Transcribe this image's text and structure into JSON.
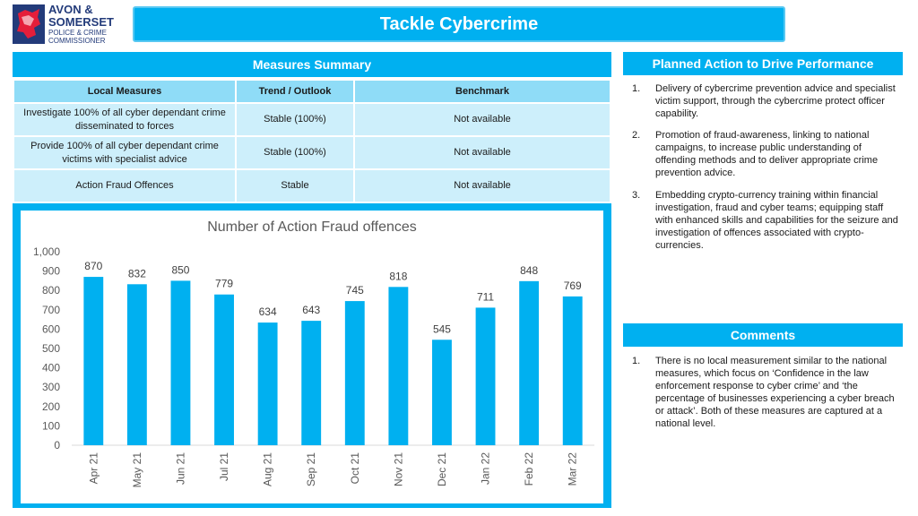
{
  "logo": {
    "line1": "AVON &",
    "line2": "SOMERSET",
    "line3": "POLICE & CRIME",
    "line4": "COMMISSIONER"
  },
  "title": "Tackle Cybercrime",
  "measures_summary": {
    "heading": "Measures Summary",
    "columns": [
      "Local Measures",
      "Trend / Outlook",
      "Benchmark"
    ],
    "rows": [
      {
        "measure": "Investigate 100% of all cyber dependant crime disseminated to forces",
        "trend": "Stable (100%)",
        "benchmark": "Not available"
      },
      {
        "measure": "Provide 100% of all cyber dependant crime victims with specialist advice",
        "trend": "Stable (100%)",
        "benchmark": "Not available"
      },
      {
        "measure": "Action Fraud Offences",
        "trend": "Stable",
        "benchmark": "Not available"
      }
    ]
  },
  "planned_action": {
    "heading": "Planned Action to Drive Performance",
    "items": [
      {
        "num": "1.",
        "text": "Delivery of cybercrime prevention advice and specialist victim support, through the cybercrime protect officer capability."
      },
      {
        "num": "2.",
        "text": "Promotion of fraud-awareness, linking to national campaigns, to increase public understanding of offending methods and to deliver appropriate crime prevention advice."
      },
      {
        "num": "3.",
        "text": "Embedding crypto-currency training within financial investigation, fraud and cyber teams; equipping staff with enhanced skills and capabilities for the seizure and investigation of offences associated with crypto-currencies."
      }
    ]
  },
  "comments": {
    "heading": "Comments",
    "items": [
      {
        "num": "1.",
        "text": "There is no local measurement similar to the national measures, which focus on ‘Confidence in the law enforcement response to cyber crime’ and ‘the percentage of businesses experiencing a cyber breach or attack’. Both of these measures are captured at a national level."
      }
    ]
  },
  "colors": {
    "accent": "#00b0f0",
    "bar": "#00b0f0",
    "header_cell": "#8fdcf7",
    "body_cell": "#cdeffb"
  },
  "chart_data": {
    "type": "bar",
    "title": "Number of Action Fraud offences",
    "categories": [
      "Apr 21",
      "May 21",
      "Jun 21",
      "Jul 21",
      "Aug 21",
      "Sep 21",
      "Oct 21",
      "Nov 21",
      "Dec 21",
      "Jan 22",
      "Feb 22",
      "Mar 22"
    ],
    "values": [
      870,
      832,
      850,
      779,
      634,
      643,
      745,
      818,
      545,
      711,
      848,
      769
    ],
    "ylim": [
      0,
      1000
    ],
    "yticks": [
      0,
      100,
      200,
      300,
      400,
      500,
      600,
      700,
      800,
      900,
      1000
    ],
    "ytick_labels": [
      "0",
      "100",
      "200",
      "300",
      "400",
      "500",
      "600",
      "700",
      "800",
      "900",
      "1,000"
    ],
    "xlabel": "",
    "ylabel": "",
    "grid": false,
    "data_labels": true
  }
}
